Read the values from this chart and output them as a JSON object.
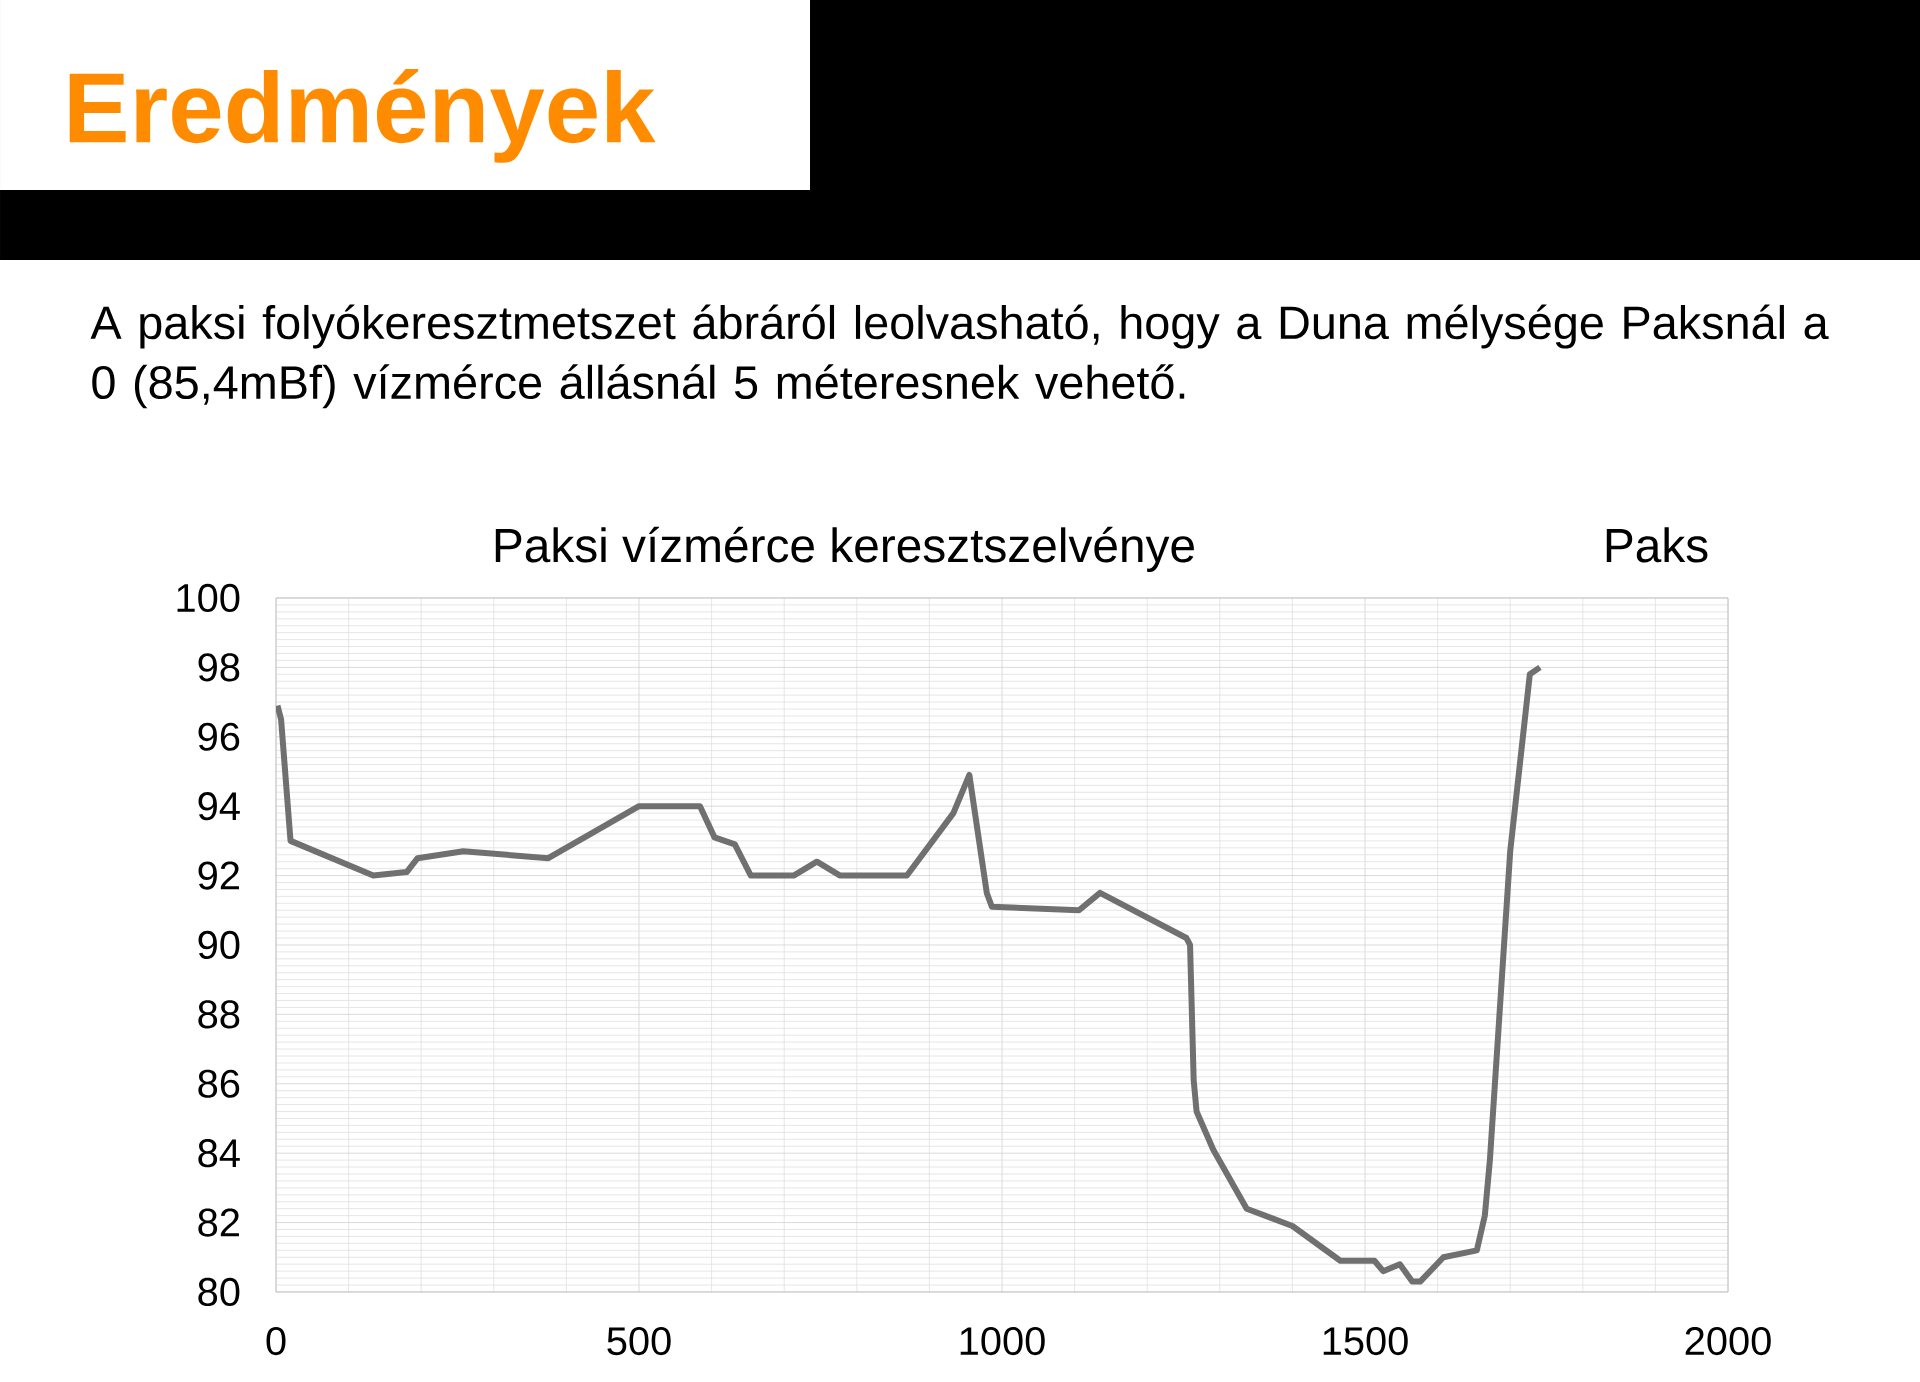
{
  "chart_data": {
    "type": "line",
    "title": "Paksi vízmérce keresztszelvénye",
    "annotations": [
      "Eredmények",
      "A paksi folyókeresztmetszet ábráról leolvasható, hogy a Duna mélysége Paksnál a 0 (85,4mBf) vízmérce állásnál 5 méteresnek vehető.",
      "Paks"
    ],
    "x": [
      2,
      7,
      17,
      20,
      134,
      180,
      195,
      258,
      375,
      500,
      584,
      604,
      632,
      654,
      713,
      745,
      777,
      869,
      933,
      955,
      979,
      986,
      1106,
      1135,
      1254,
      1259,
      1264,
      1268,
      1291,
      1337,
      1400,
      1466,
      1513,
      1525,
      1548,
      1565,
      1576,
      1608,
      1654,
      1665,
      1672,
      1700,
      1727,
      1741
    ],
    "values": [
      96.9,
      96.5,
      93.8,
      93.0,
      92.0,
      92.1,
      92.5,
      92.7,
      92.5,
      94.0,
      94.0,
      93.1,
      92.9,
      92.0,
      92.0,
      92.4,
      92.0,
      92.0,
      93.8,
      94.9,
      91.5,
      91.1,
      91.0,
      91.5,
      90.2,
      90.0,
      86.1,
      85.2,
      84.1,
      82.4,
      81.9,
      80.9,
      80.9,
      80.6,
      80.8,
      80.3,
      80.3,
      81.0,
      81.2,
      82.2,
      83.8,
      92.7,
      97.8,
      98.0
    ],
    "color": "#707070",
    "marker": "none",
    "line_style": "solid",
    "grid": true,
    "xlim": [
      0,
      2000
    ],
    "xticks": [
      0,
      500,
      1000,
      1500,
      2000
    ],
    "ylim": [
      80,
      100
    ],
    "yticks": [
      80,
      82,
      84,
      86,
      88,
      90,
      92,
      94,
      96,
      98,
      100
    ]
  }
}
